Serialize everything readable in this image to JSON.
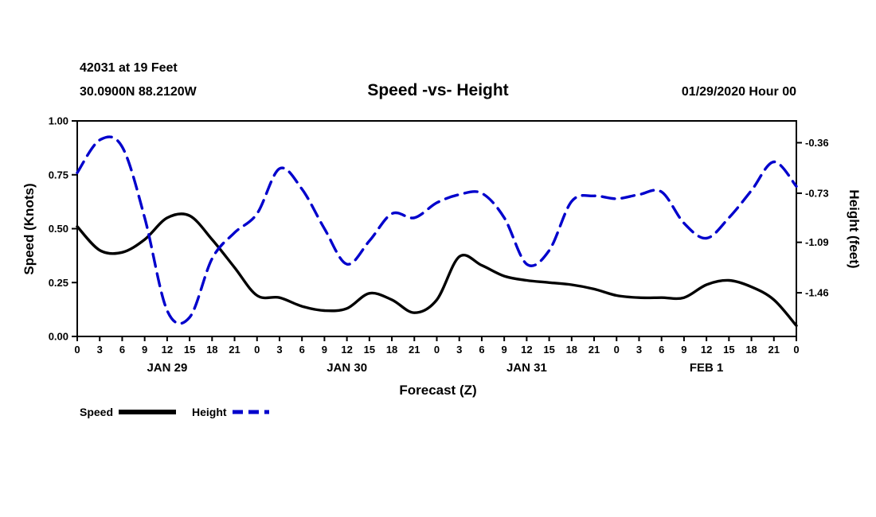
{
  "header": {
    "station": "42031 at 19 Feet",
    "location": "30.0900N 88.2120W",
    "title": "Speed -vs- Height",
    "datetime": "01/29/2020 Hour 00"
  },
  "colors": {
    "speed": "#000000",
    "height": "#0000cc",
    "axis": "#000000"
  },
  "legend": {
    "speed_label": "Speed",
    "height_label": "Height"
  },
  "chart_data": {
    "type": "line",
    "title": "Speed -vs- Height",
    "xlabel": "Forecast (Z)",
    "grid": false,
    "legend_position": "bottom-left",
    "x_range": [
      0,
      96
    ],
    "x_hours": [
      0,
      3,
      6,
      9,
      12,
      15,
      18,
      21,
      24,
      27,
      30,
      33,
      36,
      39,
      42,
      45,
      48,
      51,
      54,
      57,
      60,
      63,
      66,
      69,
      72,
      75,
      78,
      81,
      84,
      87,
      90,
      93,
      96
    ],
    "x_tick_labels": [
      "0",
      "3",
      "6",
      "9",
      "12",
      "15",
      "18",
      "21",
      "0",
      "3",
      "6",
      "9",
      "12",
      "15",
      "18",
      "21",
      "0",
      "3",
      "6",
      "9",
      "12",
      "15",
      "18",
      "21",
      "0",
      "3",
      "6",
      "9",
      "12",
      "15",
      "18",
      "21",
      "0"
    ],
    "day_labels": [
      {
        "label": "JAN 29",
        "hour": 12
      },
      {
        "label": "JAN 30",
        "hour": 36
      },
      {
        "label": "JAN 31",
        "hour": 60
      },
      {
        "label": "FEB 1",
        "hour": 84
      }
    ],
    "left_axis": {
      "label": "Speed (Knots)",
      "range": [
        0.0,
        1.0
      ],
      "ticks": [
        {
          "v": 1.0,
          "label": "1.00"
        },
        {
          "v": 0.75,
          "label": "0.75"
        },
        {
          "v": 0.5,
          "label": "0.50"
        },
        {
          "v": 0.25,
          "label": "0.25"
        },
        {
          "v": 0.0,
          "label": "0.00"
        }
      ]
    },
    "right_axis": {
      "label": "Height (feet)",
      "range": [
        -1.78,
        -0.2
      ],
      "ticks": [
        {
          "v": -0.36,
          "label": "-0.36"
        },
        {
          "v": -0.73,
          "label": "-0.73"
        },
        {
          "v": -1.09,
          "label": "-1.09"
        },
        {
          "v": -1.46,
          "label": "-1.46"
        }
      ]
    },
    "series": [
      {
        "name": "Speed",
        "axis": "left",
        "color": "#000000",
        "style": "solid",
        "values": [
          0.51,
          0.4,
          0.39,
          0.45,
          0.55,
          0.56,
          0.45,
          0.32,
          0.19,
          0.18,
          0.14,
          0.12,
          0.13,
          0.2,
          0.17,
          0.11,
          0.17,
          0.37,
          0.33,
          0.28,
          0.26,
          0.25,
          0.24,
          0.22,
          0.19,
          0.18,
          0.18,
          0.18,
          0.24,
          0.26,
          0.23,
          0.17,
          0.05
        ]
      },
      {
        "name": "Height",
        "axis": "right",
        "color": "#0000cc",
        "style": "dashed",
        "values": [
          -0.58,
          -0.34,
          -0.39,
          -0.91,
          -1.59,
          -1.64,
          -1.21,
          -1.02,
          -0.88,
          -0.55,
          -0.7,
          -0.99,
          -1.25,
          -1.08,
          -0.88,
          -0.91,
          -0.8,
          -0.74,
          -0.73,
          -0.91,
          -1.25,
          -1.15,
          -0.79,
          -0.75,
          -0.77,
          -0.74,
          -0.72,
          -0.95,
          -1.06,
          -0.91,
          -0.71,
          -0.5,
          -0.68
        ]
      }
    ]
  }
}
